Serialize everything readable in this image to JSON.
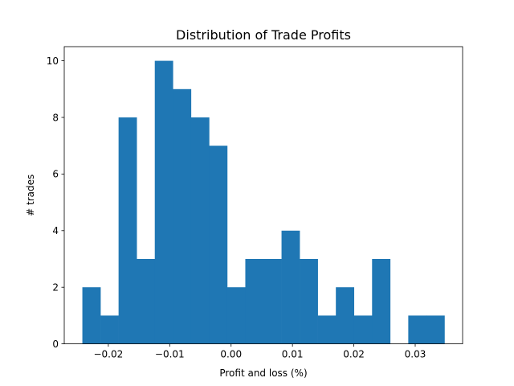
{
  "chart_data": {
    "type": "bar",
    "subtype": "histogram",
    "title": "Distribution of Trade Profits",
    "xlabel": "Profit and loss (%)",
    "ylabel": "# trades",
    "bin_edges": [
      -0.02423,
      -0.02128,
      -0.01833,
      -0.01538,
      -0.01243,
      -0.00948,
      -0.00653,
      -0.00358,
      -0.00063,
      0.00232,
      0.00527,
      0.00822,
      0.01117,
      0.01412,
      0.01707,
      0.02002,
      0.02297,
      0.02592,
      0.02887,
      0.03182,
      0.03477
    ],
    "counts": [
      2,
      1,
      8,
      3,
      10,
      9,
      8,
      7,
      2,
      3,
      3,
      4,
      3,
      1,
      2,
      1,
      3,
      0,
      1,
      1
    ],
    "xlim": [
      -0.02718,
      0.03772
    ],
    "ylim": [
      0,
      10.5
    ],
    "xticks": [
      -0.02,
      -0.01,
      0.0,
      0.01,
      0.02,
      0.03
    ],
    "xtick_labels": [
      "−0.02",
      "−0.01",
      "0.00",
      "0.01",
      "0.02",
      "0.03"
    ],
    "yticks": [
      0,
      2,
      4,
      6,
      8,
      10
    ],
    "ytick_labels": [
      "0",
      "2",
      "4",
      "6",
      "8",
      "10"
    ],
    "grid": false,
    "legend": false,
    "bar_color": "#1f77b4",
    "axis_color": "#000000"
  }
}
